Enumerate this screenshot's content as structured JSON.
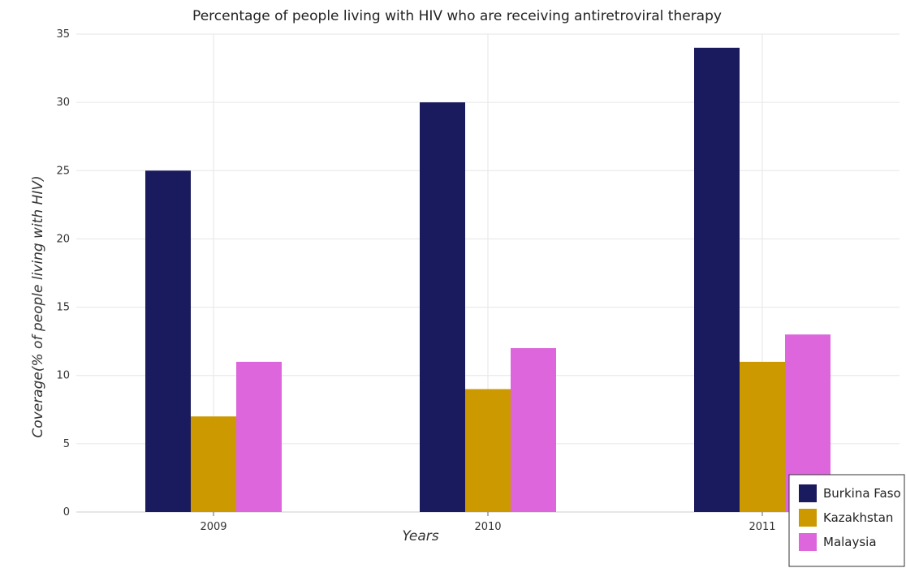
{
  "chart_data": {
    "type": "bar",
    "title": "Percentage of people living with HIV who are receiving antiretroviral therapy",
    "xlabel": "Years",
    "ylabel": "Coverage(% of people living with HIV)",
    "categories": [
      "2009",
      "2010",
      "2011"
    ],
    "ylim": [
      0,
      35
    ],
    "yticks": [
      0,
      5,
      10,
      15,
      20,
      25,
      30,
      35
    ],
    "grid": true,
    "legend_position": "bottom-right",
    "series": [
      {
        "name": "Burkina Faso",
        "color": "#1a1a5e",
        "values": [
          25,
          30,
          34
        ]
      },
      {
        "name": "Kazakhstan",
        "color": "#cc9900",
        "values": [
          7,
          9,
          11
        ]
      },
      {
        "name": "Malaysia",
        "color": "#dd66dd",
        "values": [
          11,
          12,
          13
        ]
      }
    ]
  }
}
